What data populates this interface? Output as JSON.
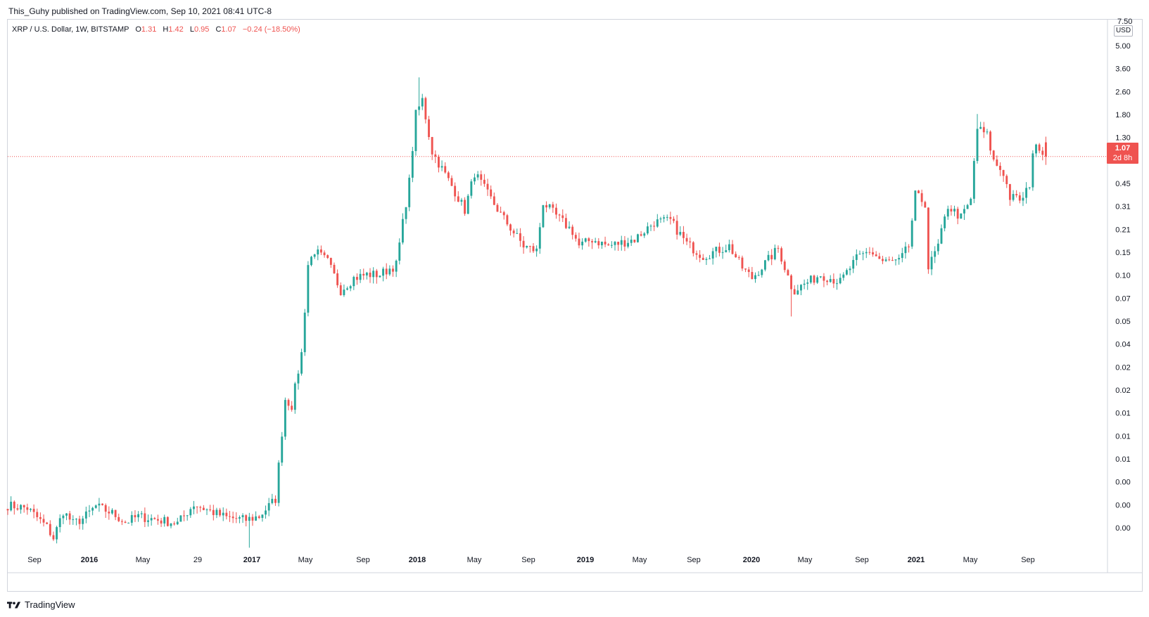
{
  "header": {
    "published_text": "This_Guhy published on TradingView.com, Sep 10, 2021 08:41 UTC-8"
  },
  "legend": {
    "symbol": "XRP / U.S. Dollar, 1W, BITSTAMP",
    "open_label": "O",
    "open_value": "1.31",
    "high_label": "H",
    "high_value": "1.42",
    "low_label": "L",
    "low_value": "0.95",
    "close_label": "C",
    "close_value": "1.07",
    "change": "−0.24 (−18.50%)"
  },
  "price_axis": {
    "currency": "USD",
    "top_tick": "7.50",
    "ticks": [
      "5.00",
      "3.60",
      "2.60",
      "1.80",
      "1.30",
      "0.65",
      "0.45",
      "0.31",
      "0.21",
      "0.15",
      "0.10",
      "0.07",
      "0.05",
      "0.04",
      "0.02",
      "0.02",
      "0.01",
      "0.01",
      "0.01",
      "0.00",
      "0.00",
      "0.00"
    ],
    "last_price": "1.07",
    "countdown": "2d 8h"
  },
  "time_axis": {
    "labels": [
      "Sep",
      "2016",
      "May",
      "29",
      "2017",
      "May",
      "Sep",
      "2018",
      "May",
      "Sep",
      "2019",
      "May",
      "Sep",
      "2020",
      "May",
      "Sep",
      "2021",
      "May",
      "Sep"
    ],
    "bold": [
      false,
      true,
      false,
      false,
      true,
      false,
      false,
      true,
      false,
      false,
      true,
      false,
      false,
      true,
      false,
      false,
      true,
      false,
      false
    ]
  },
  "colors": {
    "up": "#26a69a",
    "down": "#ef5350",
    "grid_line": "#d1d4dc",
    "text": "#131722"
  },
  "footer": {
    "brand": "TradingView",
    "logo_icon": "tradingview-logo-icon"
  },
  "chart_data": {
    "type": "candlestick",
    "title": "XRP / U.S. Dollar, 1W, BITSTAMP",
    "scale": "log",
    "ylim": [
      0.0038,
      7.5
    ],
    "last_price_line": 1.07,
    "xlabel": "",
    "ylabel": "",
    "x_range": [
      "2015-08-03",
      "2021-10-04"
    ],
    "anchors": [
      [
        "2015-08-03",
        0.0075
      ],
      [
        "2015-09-14",
        0.0072
      ],
      [
        "2015-10-26",
        0.0055
      ],
      [
        "2015-11-09",
        0.0047
      ],
      [
        "2015-11-30",
        0.0069
      ],
      [
        "2015-12-21",
        0.0058
      ],
      [
        "2016-01-11",
        0.0062
      ],
      [
        "2016-02-08",
        0.0074
      ],
      [
        "2016-03-14",
        0.0067
      ],
      [
        "2016-04-11",
        0.0059
      ],
      [
        "2016-05-09",
        0.0064
      ],
      [
        "2016-06-20",
        0.0061
      ],
      [
        "2016-08-01",
        0.0058
      ],
      [
        "2016-09-05",
        0.0076
      ],
      [
        "2016-10-10",
        0.0069
      ],
      [
        "2016-11-14",
        0.0063
      ],
      [
        "2016-12-26",
        0.0061
      ],
      [
        "2017-01-23",
        0.0064
      ],
      [
        "2017-02-27",
        0.0082
      ],
      [
        "2017-03-20",
        0.034
      ],
      [
        "2017-04-03",
        0.031
      ],
      [
        "2017-04-24",
        0.065
      ],
      [
        "2017-05-08",
        0.23
      ],
      [
        "2017-05-22",
        0.28
      ],
      [
        "2017-06-19",
        0.24
      ],
      [
        "2017-07-17",
        0.16
      ],
      [
        "2017-08-14",
        0.19
      ],
      [
        "2017-09-11",
        0.2
      ],
      [
        "2017-10-09",
        0.2
      ],
      [
        "2017-11-13",
        0.23
      ],
      [
        "2017-12-11",
        0.75
      ],
      [
        "2017-12-25",
        1.95
      ],
      [
        "2018-01-08",
        2.4
      ],
      [
        "2018-01-29",
        1.15
      ],
      [
        "2018-02-19",
        0.9
      ],
      [
        "2018-03-19",
        0.65
      ],
      [
        "2018-04-09",
        0.5
      ],
      [
        "2018-04-30",
        0.85
      ],
      [
        "2018-05-28",
        0.63
      ],
      [
        "2018-06-25",
        0.47
      ],
      [
        "2018-08-13",
        0.3
      ],
      [
        "2018-09-10",
        0.28
      ],
      [
        "2018-09-24",
        0.56
      ],
      [
        "2018-10-22",
        0.46
      ],
      [
        "2018-11-26",
        0.37
      ],
      [
        "2018-12-10",
        0.3
      ],
      [
        "2019-01-07",
        0.33
      ],
      [
        "2019-02-11",
        0.3
      ],
      [
        "2019-04-08",
        0.33
      ],
      [
        "2019-05-20",
        0.42
      ],
      [
        "2019-06-24",
        0.43
      ],
      [
        "2019-07-29",
        0.31
      ],
      [
        "2019-09-02",
        0.26
      ],
      [
        "2019-10-28",
        0.3
      ],
      [
        "2019-11-25",
        0.22
      ],
      [
        "2019-12-16",
        0.19
      ],
      [
        "2020-02-10",
        0.29
      ],
      [
        "2020-03-09",
        0.17
      ],
      [
        "2020-03-16",
        0.16
      ],
      [
        "2020-05-11",
        0.2
      ],
      [
        "2020-06-22",
        0.18
      ],
      [
        "2020-07-27",
        0.25
      ],
      [
        "2020-08-24",
        0.28
      ],
      [
        "2020-09-21",
        0.24
      ],
      [
        "2020-10-26",
        0.24
      ],
      [
        "2020-11-16",
        0.3
      ],
      [
        "2020-11-30",
        0.62
      ],
      [
        "2020-12-21",
        0.55
      ],
      [
        "2020-12-28",
        0.22
      ],
      [
        "2021-01-18",
        0.3
      ],
      [
        "2021-02-08",
        0.53
      ],
      [
        "2021-03-08",
        0.45
      ],
      [
        "2021-03-29",
        0.57
      ],
      [
        "2021-04-05",
        1.0
      ],
      [
        "2021-04-12",
        1.6
      ],
      [
        "2021-05-03",
        1.45
      ],
      [
        "2021-05-17",
        1.0
      ],
      [
        "2021-06-07",
        0.85
      ],
      [
        "2021-06-21",
        0.6
      ],
      [
        "2021-07-19",
        0.58
      ],
      [
        "2021-08-02",
        0.73
      ],
      [
        "2021-08-09",
        1.15
      ],
      [
        "2021-08-23",
        1.25
      ],
      [
        "2021-09-06",
        1.07
      ]
    ],
    "notable_extremes": [
      {
        "date": "2017-01-02",
        "low": 0.0041
      },
      {
        "date": "2018-01-01",
        "high": 3.3
      },
      {
        "date": "2020-03-09",
        "low": 0.11
      },
      {
        "date": "2021-04-12",
        "high": 1.96
      }
    ],
    "last_candle": {
      "open": 1.31,
      "high": 1.42,
      "low": 0.95,
      "close": 1.07
    }
  }
}
